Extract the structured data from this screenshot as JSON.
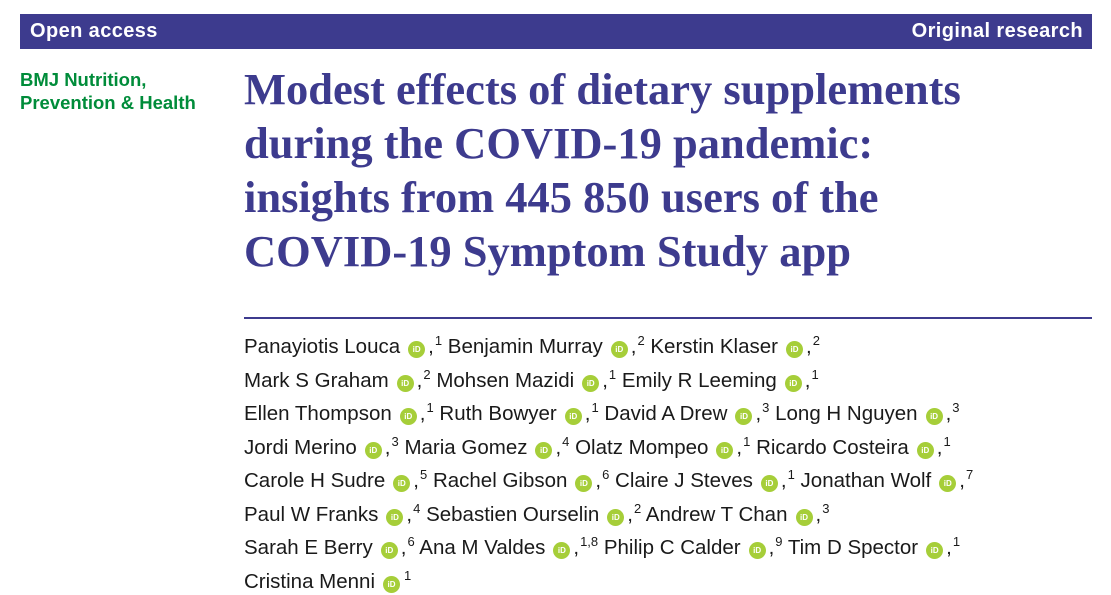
{
  "banner": {
    "left": "Open access",
    "right": "Original research"
  },
  "journal": {
    "line1": "BMJ Nutrition,",
    "line2": "Prevention & Health"
  },
  "title": {
    "lines": [
      "Modest effects of dietary supplements",
      "during the COVID-19 pandemic:",
      "insights from 445 850 users of the",
      "COVID-19 Symptom Study app"
    ]
  },
  "orcid_label": "iD",
  "authors": [
    [
      {
        "name": "Panayiotis Louca",
        "aff": "1"
      },
      {
        "name": "Benjamin Murray",
        "aff": "2"
      },
      {
        "name": "Kerstin Klaser",
        "aff": "2"
      }
    ],
    [
      {
        "name": "Mark S Graham",
        "aff": "2"
      },
      {
        "name": "Mohsen Mazidi",
        "aff": "1"
      },
      {
        "name": "Emily R Leeming",
        "aff": "1"
      }
    ],
    [
      {
        "name": "Ellen Thompson",
        "aff": "1"
      },
      {
        "name": "Ruth Bowyer",
        "aff": "1"
      },
      {
        "name": "David A Drew",
        "aff": "3"
      },
      {
        "name": "Long H Nguyen",
        "aff": "3"
      }
    ],
    [
      {
        "name": "Jordi Merino",
        "aff": "3"
      },
      {
        "name": "Maria Gomez",
        "aff": "4"
      },
      {
        "name": "Olatz Mompeo",
        "aff": "1"
      },
      {
        "name": "Ricardo Costeira",
        "aff": "1"
      }
    ],
    [
      {
        "name": "Carole H Sudre",
        "aff": "5"
      },
      {
        "name": "Rachel Gibson",
        "aff": "6"
      },
      {
        "name": "Claire J Steves",
        "aff": "1"
      },
      {
        "name": "Jonathan Wolf",
        "aff": "7"
      }
    ],
    [
      {
        "name": "Paul W Franks",
        "aff": "4"
      },
      {
        "name": "Sebastien Ourselin",
        "aff": "2"
      },
      {
        "name": "Andrew T Chan",
        "aff": "3"
      }
    ],
    [
      {
        "name": "Sarah E Berry",
        "aff": "6"
      },
      {
        "name": "Ana M Valdes",
        "aff": "1,8"
      },
      {
        "name": "Philip C Calder",
        "aff": "9"
      },
      {
        "name": "Tim D Spector",
        "aff": "1"
      }
    ],
    [
      {
        "name": "Cristina Menni",
        "aff": "1",
        "last": true
      }
    ]
  ],
  "colors": {
    "brand": "#3d3b8e",
    "journal": "#008c3a",
    "orcid": "#a6ce39"
  }
}
